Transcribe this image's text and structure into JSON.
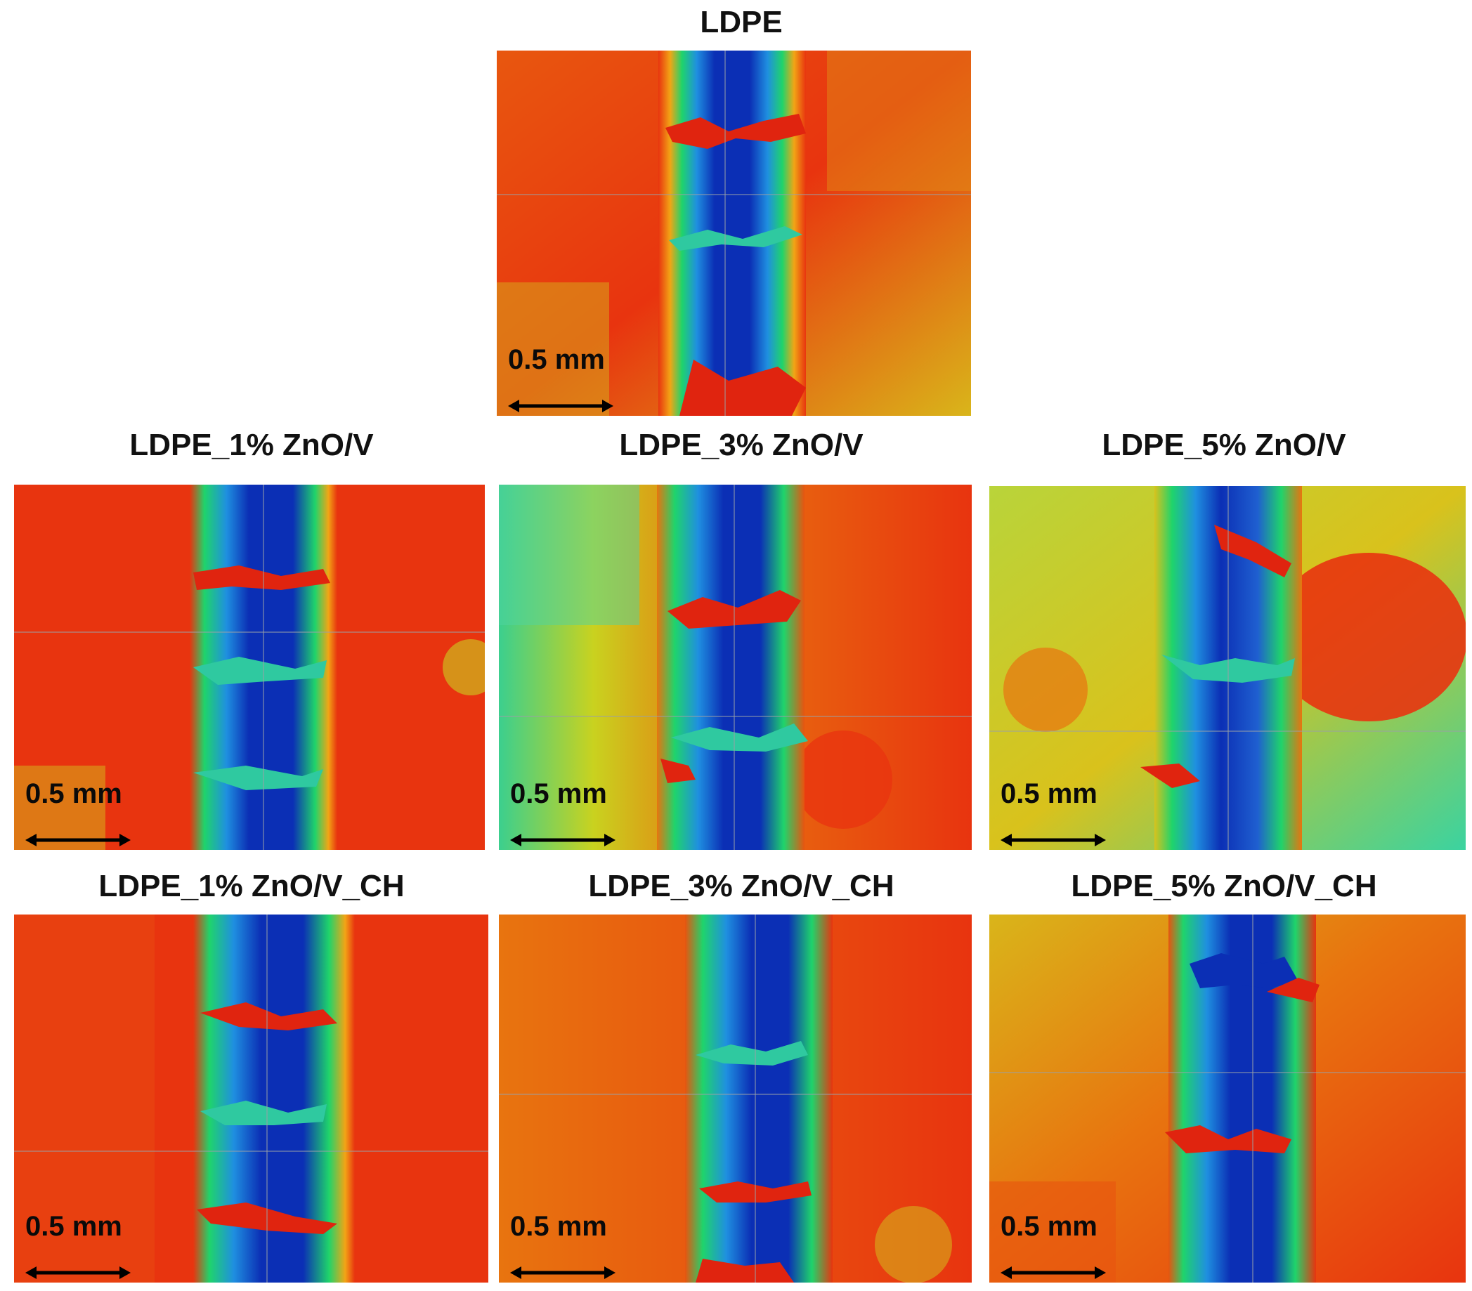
{
  "panels": [
    {
      "title": "LDPE",
      "scale_label": "0.5 mm",
      "variant": "ldpe"
    },
    {
      "title": "LDPE_1% ZnO/V",
      "scale_label": "0.5 mm",
      "variant": "zn1"
    },
    {
      "title": "LDPE_3% ZnO/V",
      "scale_label": "0.5 mm",
      "variant": "zn3"
    },
    {
      "title": "LDPE_5% ZnO/V",
      "scale_label": "0.5 mm",
      "variant": "zn5"
    },
    {
      "title": "LDPE_1% ZnO/V_CH",
      "scale_label": "0.5 mm",
      "variant": "ch1"
    },
    {
      "title": "LDPE_3% ZnO/V_CH",
      "scale_label": "0.5 mm",
      "variant": "ch3"
    },
    {
      "title": "LDPE_5% ZnO/V_CH",
      "scale_label": "0.5 mm",
      "variant": "ch5"
    }
  ],
  "colors": {
    "surface_high": "#e8340f",
    "surface_mid": "#f08a12",
    "surface_low": "#c9d21f",
    "track_edge": "#2fc9a0",
    "track_center": "#0b2fb5",
    "track_deep": "#071c8a",
    "debris": "#e0240f"
  }
}
